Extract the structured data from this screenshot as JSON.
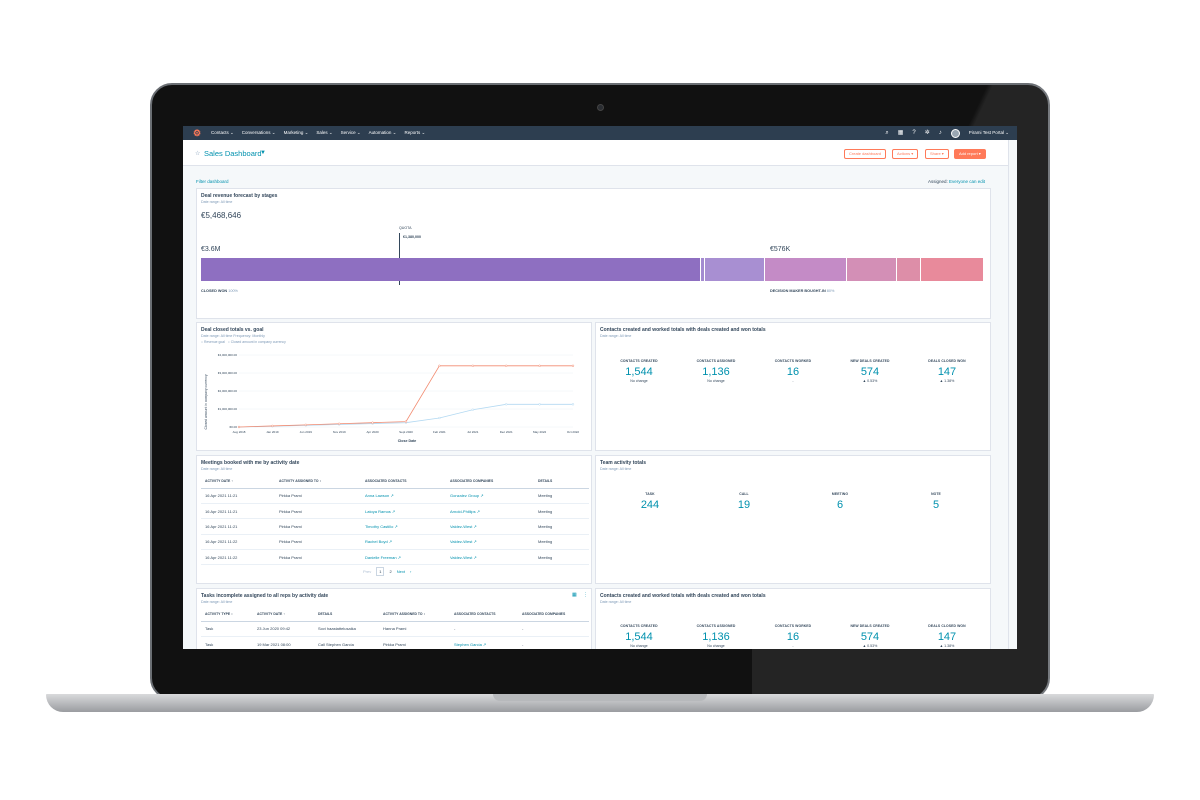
{
  "nav": {
    "items": [
      "Contacts ⌄",
      "Conversations ⌄",
      "Marketing ⌄",
      "Sales ⌄",
      "Service ⌄",
      "Automation ⌄",
      "Reports ⌄"
    ],
    "portal": "Pirami Test Portal ⌄"
  },
  "header": {
    "title": "Sales Dashboard",
    "create_dashboard": "Create dashboard",
    "actions": "Actions ▾",
    "share": "Share ▾",
    "add_report": "Add report ▾"
  },
  "filter": {
    "label": "Filter dashboard",
    "assigned_label": "Assigned:",
    "assigned_value": "Everyone can edit"
  },
  "forecast": {
    "title": "Deal revenue forecast by stages",
    "subtitle": "Date range: All time",
    "total": "€5,468,646",
    "quota_label": "QUOTA",
    "quota_value": "€1,380,000",
    "left_value": "€3.6M",
    "right_value": "€576K",
    "left_stage": "CLOSED WON",
    "left_pct": "100%",
    "right_stage": "DECISION MAKER BOUGHT-IN",
    "right_pct": "80%"
  },
  "goal_chart": {
    "title": "Deal closed totals vs. goal",
    "subtitle": "Date range: All time     Frequency: Monthly",
    "legend_goal": "Revenue goal",
    "legend_closed": "Closed amount in company currency",
    "ylabel": "Closed amount in company currency",
    "xlabel": "Close Date"
  },
  "chart_data": {
    "type": "line",
    "x": [
      "Aug 2018",
      "Jan 2019",
      "Jun 2019",
      "Nov 2019",
      "Apr 2020",
      "Sept 2020",
      "Feb 2021",
      "Jul 2021",
      "Dec 2021",
      "May 2022",
      "Oct 2022"
    ],
    "series": [
      {
        "name": "Revenue goal",
        "values": [
          0,
          40000,
          90000,
          140000,
          190000,
          240000,
          500000,
          960000,
          1260000,
          1260000,
          1260000
        ]
      },
      {
        "name": "Closed amount in company currency",
        "values": [
          0,
          60000,
          120000,
          180000,
          240000,
          300000,
          3400000,
          3400000,
          3400000,
          3400000,
          3400000
        ]
      }
    ],
    "yticks": [
      "€0.00",
      "€1,000,000.00",
      "€2,000,000.00",
      "€3,000,000.00",
      "€4,000,000.00"
    ],
    "ylim": [
      0,
      4000000
    ]
  },
  "contacts1": {
    "title": "Contacts created and worked totals with deals created and won totals",
    "subtitle": "Date range: All time",
    "stats": [
      {
        "label": "CONTACTS CREATED",
        "value": "1,544",
        "sub": "No change"
      },
      {
        "label": "CONTACTS ASSIGNED",
        "value": "1,136",
        "sub": "No change"
      },
      {
        "label": "CONTACTS WORKED",
        "value": "16",
        "sub": "-"
      },
      {
        "label": "NEW DEALS CREATED",
        "value": "574",
        "sub": "▲ 0.53%"
      },
      {
        "label": "DEALS CLOSED WON",
        "value": "147",
        "sub": "▲ 1.38%"
      }
    ]
  },
  "meetings": {
    "title": "Meetings booked with me by activity date",
    "subtitle": "Date range: All time",
    "headers": [
      "ACTIVITY DATE ↑",
      "ACTIVITY ASSIGNED TO ↕",
      "ASSOCIATED CONTACTS",
      "ASSOCIATED COMPANIES",
      "DETAILS"
    ],
    "rows": [
      [
        "16 Apr 2021 11:21",
        "Pirkka Prami",
        "Anna Lawson ↗",
        "Gonzalez Group ↗",
        "Meeting"
      ],
      [
        "16 Apr 2021 11:21",
        "Pirkka Prami",
        "Latoya Ramos ↗",
        "Arnold-Phillips ↗",
        "Meeting"
      ],
      [
        "16 Apr 2021 11:21",
        "Pirkka Prami",
        "Timothy Castillo ↗",
        "Valdez-West ↗",
        "Meeting"
      ],
      [
        "16 Apr 2021 11:22",
        "Pirkka Prami",
        "Rachel Boyd ↗",
        "Valdez-West ↗",
        "Meeting"
      ],
      [
        "16 Apr 2021 11:22",
        "Pirkka Prami",
        "Danielle Freeman ↗",
        "Valdez-West ↗",
        "Meeting"
      ]
    ],
    "pager": {
      "prev": "Prev",
      "page1": "1",
      "page2": "2",
      "next": "Next"
    }
  },
  "team": {
    "title": "Team activity totals",
    "subtitle": "Date range: All time",
    "stats": [
      {
        "label": "TASK",
        "value": "244"
      },
      {
        "label": "CALL",
        "value": "19"
      },
      {
        "label": "MEETING",
        "value": "6"
      },
      {
        "label": "NOTE",
        "value": "5"
      }
    ]
  },
  "tasks": {
    "title": "Tasks incomplete assigned to all reps by activity date",
    "subtitle": "Date range: All time",
    "headers": [
      "ACTIVITY TYPE ↕",
      "ACTIVITY DATE ↑",
      "DETAILS",
      "ACTIVITY ASSIGNED TO ↕",
      "ASSOCIATED CONTACTS",
      "ASSOCIATED COMPANIES"
    ],
    "rows": [
      [
        "Task",
        "23 Jun 2020 09:42",
        "Sovi haastattelusaika",
        "Hanna Prami",
        "-",
        "-"
      ],
      [
        "Task",
        "19 Mar 2021 08:00",
        "Call Stephen Garcia",
        "Pirkka Prami",
        "Stephen Garcia ↗",
        "-"
      ]
    ]
  },
  "contacts2": {
    "title": "Contacts created and worked totals with deals created and won totals",
    "subtitle": "Date range: All time",
    "stats": [
      {
        "label": "CONTACTS CREATED",
        "value": "1,544",
        "sub": "No change"
      },
      {
        "label": "CONTACTS ASSIGNED",
        "value": "1,136",
        "sub": "No change"
      },
      {
        "label": "CONTACTS WORKED",
        "value": "16",
        "sub": "-"
      },
      {
        "label": "NEW DEALS CREATED",
        "value": "574",
        "sub": "▲ 0.53%"
      },
      {
        "label": "DEALS CLOSED WON",
        "value": "147",
        "sub": "▲ 1.38%"
      }
    ]
  },
  "colors": {
    "nav": "#2d3e50",
    "accent": "#0091ae",
    "orange": "#ff7a59",
    "purple": "#8e6fc1",
    "pink": "#e88a9b"
  }
}
